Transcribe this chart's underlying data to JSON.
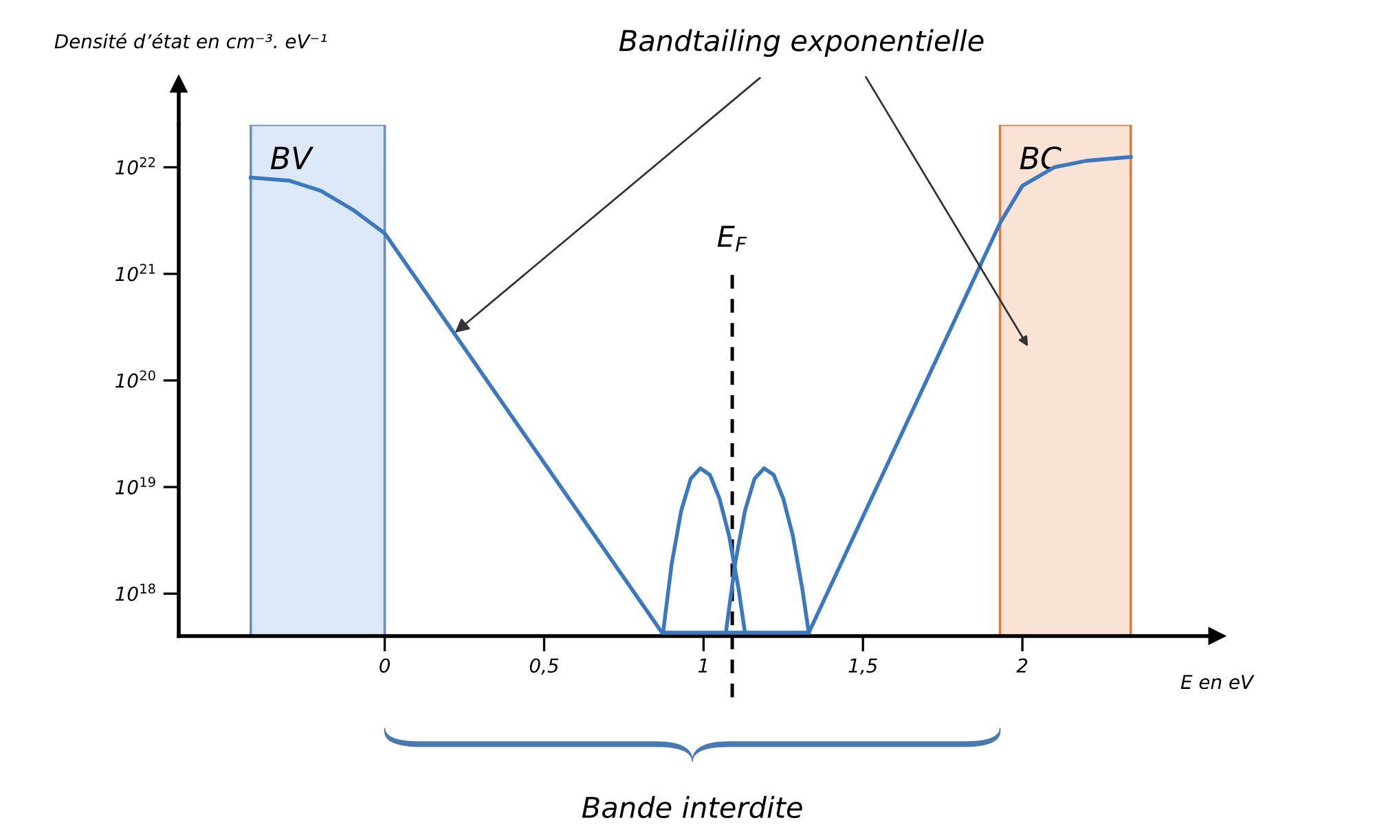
{
  "chart_data": {
    "type": "line",
    "xlabel": "E en eV",
    "ylabel": "Densité d’état en cm⁻³. eV⁻¹",
    "log": "y",
    "xlim": [
      -0.646,
      2.61
    ],
    "ylim": [
      4e+17,
      2.5e+22
    ],
    "xticks": [
      0,
      {
        "value": 0.5,
        "label": "0,5"
      },
      1,
      {
        "value": 1.5,
        "label": "1,5"
      },
      2
    ],
    "yticks": [
      {
        "value": 1e+18,
        "label": "10$^{18}$"
      },
      {
        "value": 1e+19,
        "label": "10$^{19}$"
      },
      {
        "value": 1e+20,
        "label": "10$^{20}$"
      },
      {
        "value": 1e+21,
        "label": "10$^{21}$"
      },
      {
        "value": 1e+22,
        "label": "10$^{22}$"
      }
    ],
    "grid": false,
    "legend": false,
    "series": [
      {
        "color": "#3a78c0",
        "x": [
          -0.42,
          -0.3,
          -0.2,
          -0.1,
          0,
          0.87,
          1.33,
          1.93,
          2.0,
          2.1,
          2.2,
          2.34
        ],
        "values": [
          8e+21,
          7.5e+21,
          6e+21,
          4e+21,
          2.4e+21,
          4.3e+17,
          4.3e+17,
          3e+21,
          6.7e+21,
          1e+22,
          1.15e+22,
          1.25e+22
        ]
      },
      {
        "color": "#3a78c0",
        "x": [
          0.873,
          0.9,
          0.93,
          0.96,
          0.99,
          1.02,
          1.05,
          1.08,
          1.11,
          1.13
        ],
        "values": [
          4.3e+17,
          1.9e+18,
          6e+18,
          1.2e+19,
          1.5e+19,
          1.3e+19,
          7.8e+18,
          3.5e+18,
          1.1e+18,
          4.3e+17
        ]
      },
      {
        "color": "#3a78c0",
        "x": [
          1.07,
          1.1,
          1.13,
          1.16,
          1.19,
          1.22,
          1.25,
          1.28,
          1.31,
          1.33
        ],
        "values": [
          4.3e+17,
          2e+18,
          6e+18,
          1.2e+19,
          1.5e+19,
          1.3e+19,
          7.8e+18,
          3.5e+18,
          1.1e+18,
          4.3e+17
        ]
      }
    ],
    "bands": [
      {
        "axis": "x",
        "from": -0.42,
        "to": 0,
        "label": "BV",
        "color": "#dce8f5"
      },
      {
        "axis": "x",
        "from": 1.93,
        "to": 2.34,
        "label": "BC",
        "color": "#fae3d5"
      }
    ],
    "ref_lines": [
      {
        "axis": "x",
        "value": 1.09,
        "label": "E$_{F}$",
        "color": "#000000",
        "line_style": "dashed"
      }
    ],
    "annotations": [
      {
        "text": "Bandtailing exponentielle",
        "x": 0.22,
        "y": 2.8e+20
      },
      "Bande interdite"
    ]
  }
}
